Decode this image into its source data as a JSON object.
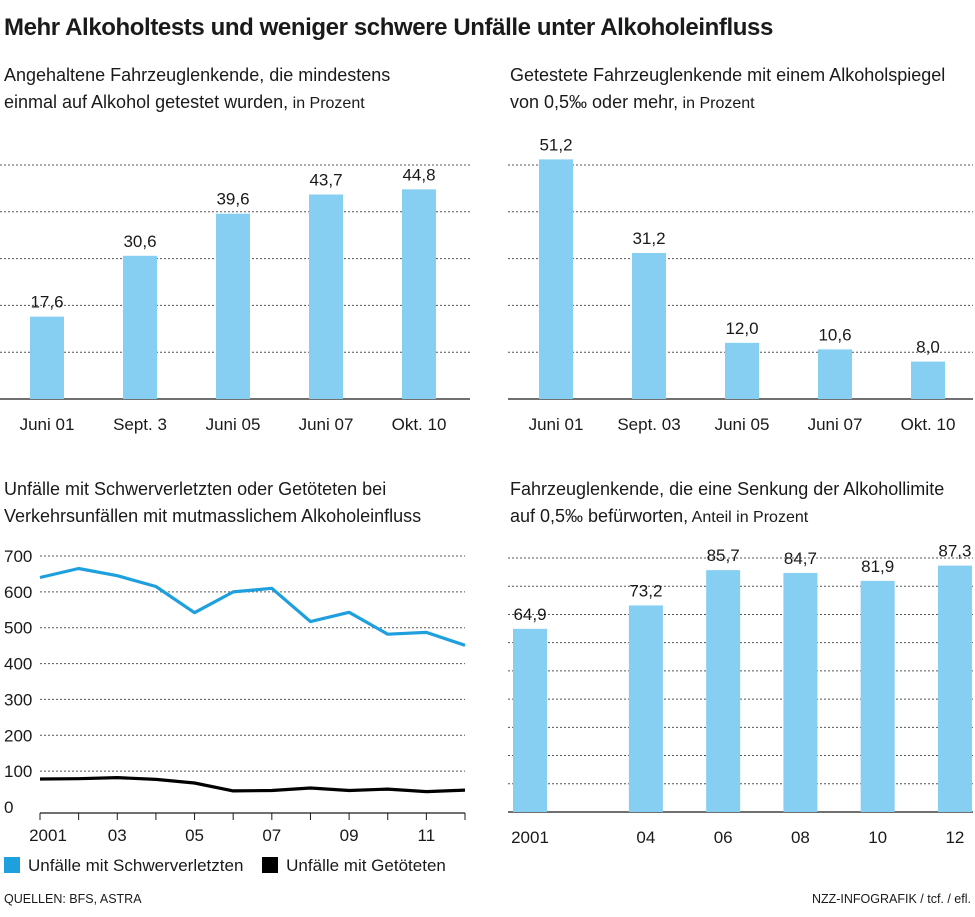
{
  "title": "Mehr Alkoholtests und weniger schwere Unfälle unter Alkoholeinfluss",
  "colors": {
    "bar": "#86cff2",
    "series_injured": "#1ea0de",
    "series_killed": "#000000",
    "grid": "#555555"
  },
  "panels": {
    "p1": {
      "title_line1": "Angehaltene Fahrzeuglenkende, die mindestens",
      "title_line2": "einmal auf Alkohol getestet wurden,",
      "unit": " in Prozent"
    },
    "p2": {
      "title_line1": "Getestete Fahrzeuglenkende mit einem Alkoholspiegel",
      "title_line2": "von 0,5‰ oder mehr,",
      "unit": " in Prozent"
    },
    "p3": {
      "title_line1": "Unfälle mit Schwerverletzten oder Getöteten bei",
      "title_line2": "Verkehrsunfällen mit mutmasslichem Alkoholeinfluss",
      "unit": ""
    },
    "p4": {
      "title_line1": "Fahrzeuglenkende, die eine Senkung der Alkohollimite",
      "title_line2": "auf 0,5‰ befürworten,",
      "unit": " Anteil in Prozent"
    }
  },
  "legend": {
    "injured": "Unfälle mit Schwerverletzten",
    "killed": "Unfälle mit Getöteten"
  },
  "footer": {
    "sources": "QUELLEN: BFS, ASTRA",
    "credit": "NZZ-INFOGRAFIK / tcf. / efl."
  },
  "chart_data": [
    {
      "type": "bar",
      "title": "Angehaltene Fahrzeuglenkende, die mindestens einmal auf Alkohol getestet wurden, in Prozent",
      "categories": [
        "Juni 01",
        "Sept. 3",
        "Juni 05",
        "Juni 07",
        "Okt. 10"
      ],
      "values": [
        17.6,
        30.6,
        39.6,
        43.7,
        44.8
      ],
      "labels": [
        "17,6",
        "30,6",
        "39,6",
        "43,7",
        "44,8"
      ],
      "ylim": [
        0,
        50
      ],
      "grid": true,
      "ytick_labels": false
    },
    {
      "type": "bar",
      "title": "Getestete Fahrzeuglenkende mit einem Alkoholspiegel von 0,5‰ oder mehr, in Prozent",
      "categories": [
        "Juni 01",
        "Sept. 03",
        "Juni 05",
        "Juni 07",
        "Okt. 10"
      ],
      "values": [
        51.2,
        31.2,
        12.0,
        10.6,
        8.0
      ],
      "labels": [
        "51,2",
        "31,2",
        "12,0",
        "10,6",
        "8,0"
      ],
      "ylim": [
        0,
        50
      ],
      "grid": true,
      "ytick_labels": false
    },
    {
      "type": "line",
      "title": "Unfälle mit Schwerverletzten oder Getöteten bei Verkehrsunfällen mit mutmasslichem Alkoholeinfluss",
      "x": [
        2001,
        2002,
        2003,
        2004,
        2005,
        2006,
        2007,
        2008,
        2009,
        2010,
        2011,
        2012
      ],
      "xticks": [
        2001,
        2003,
        2005,
        2007,
        2009,
        2011
      ],
      "xtick_labels": [
        "2001",
        "03",
        "05",
        "07",
        "09",
        "11"
      ],
      "yticks": [
        0,
        100,
        200,
        300,
        400,
        500,
        600,
        700
      ],
      "ylim": [
        0,
        700
      ],
      "series": [
        {
          "name": "Unfälle mit Schwerverletzten",
          "values": [
            640,
            665,
            645,
            615,
            542,
            600,
            610,
            517,
            543,
            482,
            487,
            451
          ]
        },
        {
          "name": "Unfälle mit Getöteten",
          "values": [
            78,
            79,
            82,
            77,
            67,
            45,
            46,
            53,
            46,
            50,
            43,
            47
          ]
        }
      ],
      "legend": "bottom",
      "grid": true
    },
    {
      "type": "bar",
      "title": "Fahrzeuglenkende, die eine Senkung der Alkohollimite auf 0,5‰ befürworten, Anteil in Prozent",
      "categories": [
        "2001",
        "04",
        "06",
        "08",
        "10",
        "12"
      ],
      "x": [
        2001,
        2004,
        2006,
        2008,
        2010,
        2012
      ],
      "values": [
        64.9,
        73.2,
        85.7,
        84.7,
        81.9,
        87.3
      ],
      "labels": [
        "64,9",
        "73,2",
        "85,7",
        "84,7",
        "81,9",
        "87,3"
      ],
      "ylim": [
        0,
        90
      ],
      "grid": true,
      "ytick_labels": false
    }
  ]
}
